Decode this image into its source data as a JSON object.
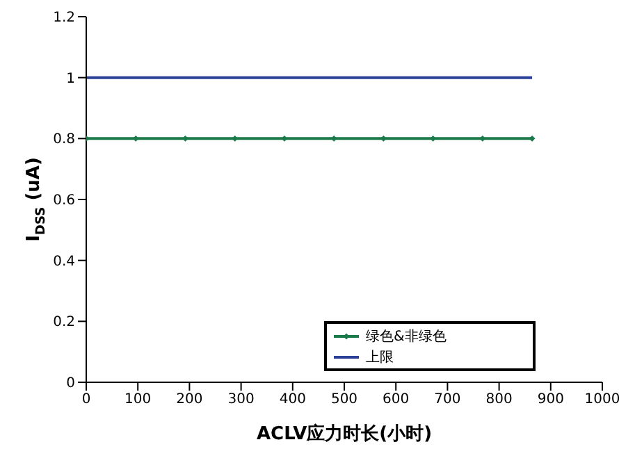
{
  "chart_data": {
    "type": "line",
    "xlabel": "ACLV应力时长(小时)",
    "ylabel": "I$_{DSS}$ (uA)",
    "xlim": [
      0,
      1000
    ],
    "xticks": [
      0,
      100,
      200,
      300,
      400,
      500,
      600,
      700,
      800,
      900,
      1000
    ],
    "ylim": [
      0,
      1.2
    ],
    "yticks": [
      0,
      0.2,
      0.4,
      0.6,
      0.8,
      1,
      1.2
    ],
    "grid": false,
    "legend": "bottom right",
    "series": [
      {
        "name": "绿色&非绿色",
        "color": "#1a7a4a",
        "marker": "diamond",
        "x": [
          0,
          96,
          192,
          288,
          384,
          480,
          576,
          672,
          768,
          864
        ],
        "values": [
          0.8,
          0.8,
          0.8,
          0.8,
          0.8,
          0.8,
          0.8,
          0.8,
          0.8,
          0.8
        ]
      },
      {
        "name": "上限",
        "color": "#2b3f99",
        "marker": "none",
        "x": [
          0,
          864
        ],
        "values": [
          1,
          1
        ]
      }
    ]
  }
}
